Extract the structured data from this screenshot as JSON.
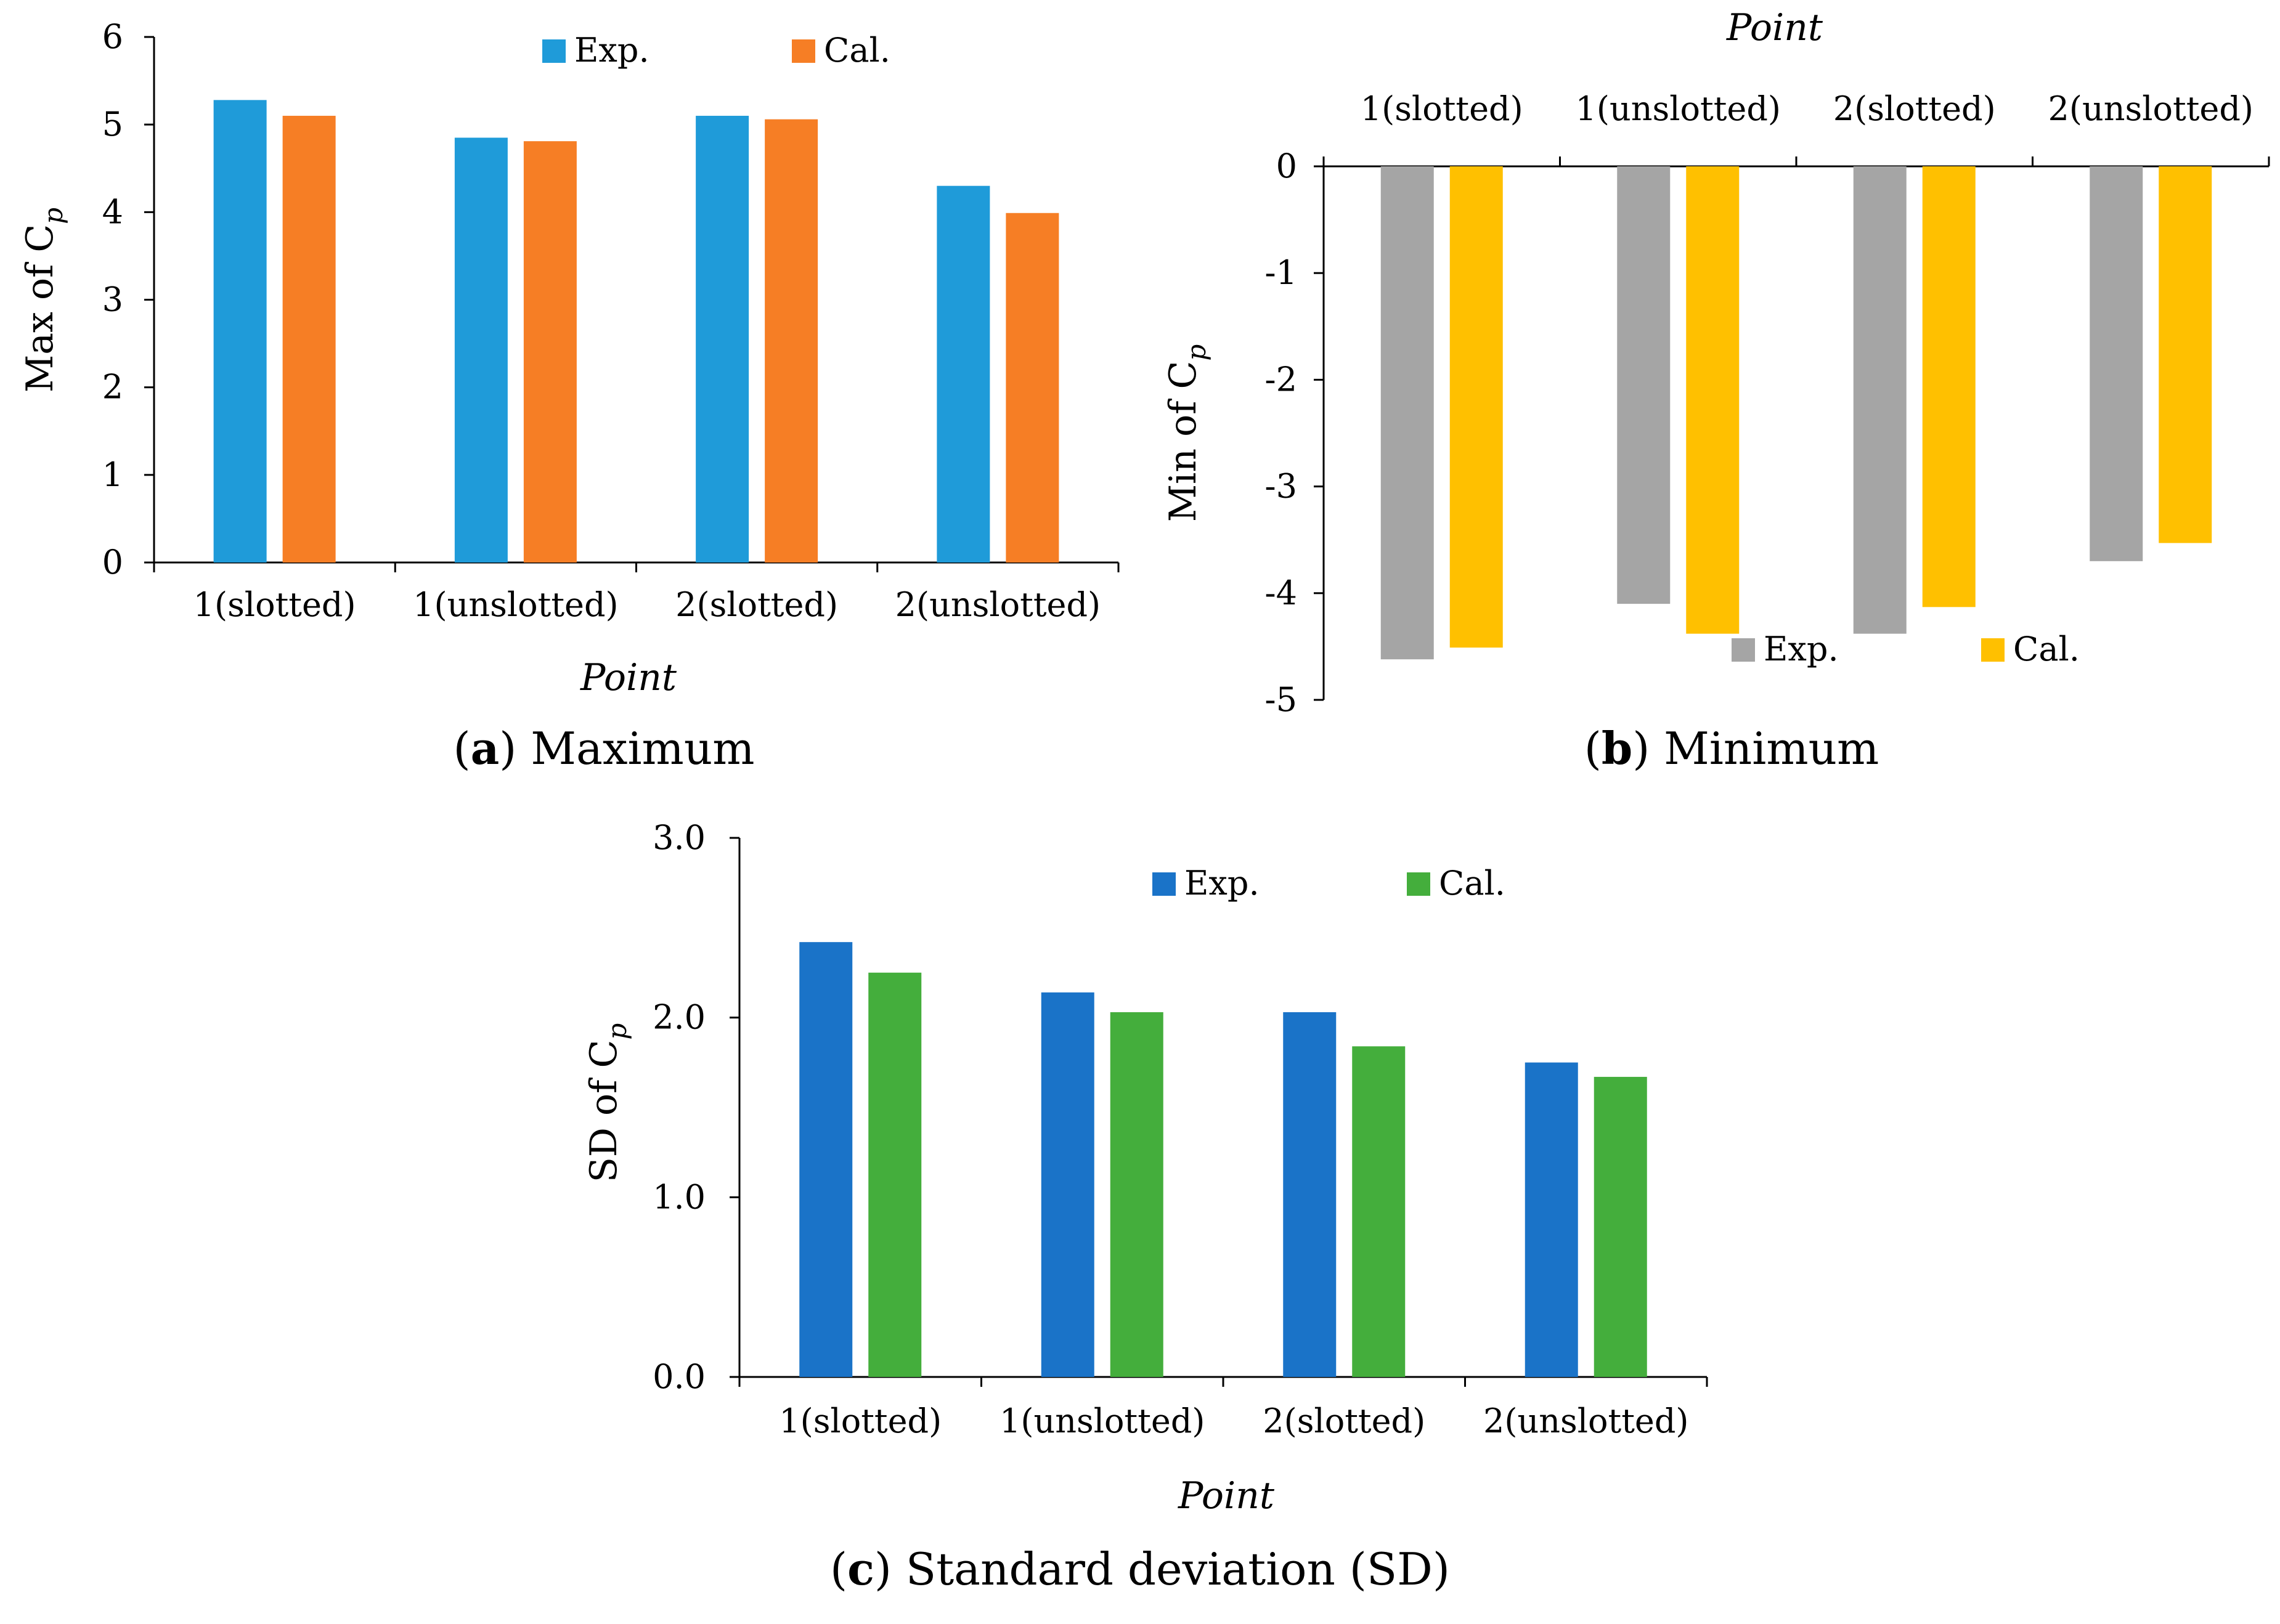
{
  "chart_data": [
    {
      "id": "a",
      "type": "bar",
      "caption": {
        "letter": "a",
        "text": "Maximum"
      },
      "xlabel": "Point",
      "ylabel": "Max of C",
      "ylabel_sub": "p",
      "categories": [
        "1(slotted)",
        "1(unslotted)",
        "2(slotted)",
        "2(unslotted)"
      ],
      "ylim": [
        0,
        6
      ],
      "yticks": [
        "0",
        "1",
        "2",
        "3",
        "4",
        "5",
        "6"
      ],
      "legend_position": "top-right",
      "series": [
        {
          "name": "Exp.",
          "color": "#1f9bd9",
          "values": [
            5.28,
            4.85,
            5.1,
            4.3
          ]
        },
        {
          "name": "Cal.",
          "color": "#f67e25",
          "values": [
            5.1,
            4.81,
            5.06,
            3.99
          ]
        }
      ]
    },
    {
      "id": "b",
      "type": "bar",
      "caption": {
        "letter": "b",
        "text": "Minimum"
      },
      "xlabel": "Point",
      "ylabel": "Min of C",
      "ylabel_sub": "p",
      "categories": [
        "1(slotted)",
        "1(unslotted)",
        "2(slotted)",
        "2(unslotted)"
      ],
      "ylim": [
        -5,
        0
      ],
      "yticks": [
        "0",
        "-1",
        "-2",
        "-3",
        "-4",
        "-5"
      ],
      "legend_position": "bottom-right",
      "series": [
        {
          "name": "Exp.",
          "color": "#a5a5a5",
          "values": [
            -4.62,
            -4.1,
            -4.38,
            -3.7
          ]
        },
        {
          "name": "Cal.",
          "color": "#ffc000",
          "values": [
            -4.51,
            -4.38,
            -4.13,
            -3.53
          ]
        }
      ]
    },
    {
      "id": "c",
      "type": "bar",
      "caption": {
        "letter": "c",
        "text": "Standard deviation (SD)"
      },
      "xlabel": "Point",
      "ylabel": "SD of C",
      "ylabel_sub": "p",
      "categories": [
        "1(slotted)",
        "1(unslotted)",
        "2(slotted)",
        "2(unslotted)"
      ],
      "ylim": [
        0,
        3
      ],
      "yticks": [
        "0.0",
        "1.0",
        "2.0",
        "3.0"
      ],
      "legend_position": "top-right",
      "series": [
        {
          "name": "Exp.",
          "color": "#1a73c8",
          "values": [
            2.42,
            2.14,
            2.03,
            1.75
          ]
        },
        {
          "name": "Cal.",
          "color": "#44ae3c",
          "values": [
            2.25,
            2.03,
            1.84,
            1.67
          ]
        }
      ]
    }
  ]
}
